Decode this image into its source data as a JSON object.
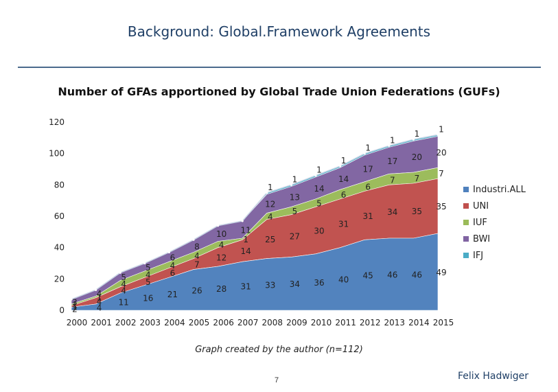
{
  "header": {
    "title": "Background: Global.Framework Agreements"
  },
  "footer": {
    "caption": "Graph created by the author (n=112)",
    "page_number": "7",
    "author": "Felix Hadwiger"
  },
  "chart_data": {
    "type": "area",
    "title": "Number of GFAs apportioned by Global Trade Union Federations (GUFs)",
    "xlabel": "",
    "ylabel": "",
    "ylim": [
      0,
      120
    ],
    "yticks": [
      0,
      20,
      40,
      60,
      80,
      100,
      120
    ],
    "categories": [
      "2000",
      "2001",
      "2002",
      "2003",
      "2004",
      "2005",
      "2006",
      "2007",
      "2008",
      "2009",
      "2010",
      "2011",
      "2012",
      "2013",
      "2014",
      "2015"
    ],
    "stacked": true,
    "legend_position": "right",
    "series": [
      {
        "name": "Industri.ALL",
        "color": "#4f81bd",
        "values": [
          2,
          4,
          11,
          16,
          21,
          26,
          28,
          31,
          33,
          34,
          36,
          40,
          45,
          46,
          46,
          49
        ]
      },
      {
        "name": "UNI",
        "color": "#c0504d",
        "values": [
          1,
          4,
          4,
          5,
          6,
          7,
          12,
          14,
          25,
          27,
          30,
          31,
          31,
          34,
          35,
          35
        ]
      },
      {
        "name": "IUF",
        "color": "#9bbb59",
        "values": [
          1,
          1,
          4,
          4,
          4,
          4,
          4,
          1,
          4,
          5,
          5,
          6,
          6,
          7,
          7,
          7
        ]
      },
      {
        "name": "BWI",
        "color": "#8064a2",
        "values": [
          3,
          4,
          5,
          5,
          6,
          8,
          10,
          11,
          12,
          13,
          14,
          14,
          17,
          17,
          20,
          20
        ]
      },
      {
        "name": "IFJ",
        "color": "#4bacc6",
        "values": [
          0,
          0,
          0,
          0,
          0,
          0,
          0,
          0,
          1,
          1,
          1,
          1,
          1,
          1,
          1,
          1
        ]
      }
    ],
    "point_labels": [
      [
        "2",
        "4",
        "11",
        "16",
        "21",
        "26",
        "28",
        "31",
        "33",
        "34",
        "36",
        "40",
        "45",
        "46",
        "46",
        "49"
      ],
      [
        "1",
        "4",
        "4",
        "5",
        "6",
        "7",
        "12",
        "14",
        "25",
        "27",
        "30",
        "31",
        "31",
        "34",
        "35",
        "35"
      ],
      [
        "1",
        "1",
        "4",
        "4",
        "4",
        "4",
        "4",
        "1",
        "4",
        "5",
        "5",
        "6",
        "6",
        "7",
        "7",
        "7"
      ],
      [
        "3",
        "4",
        "5",
        "5",
        "6",
        "8",
        "10",
        "11",
        "12",
        "13",
        "14",
        "14",
        "17",
        "17",
        "20",
        "20"
      ],
      [
        "",
        "",
        "",
        "",
        "",
        "",
        "",
        "",
        "1",
        "1",
        "1",
        "1",
        "1",
        "1",
        "1",
        "1"
      ]
    ]
  }
}
